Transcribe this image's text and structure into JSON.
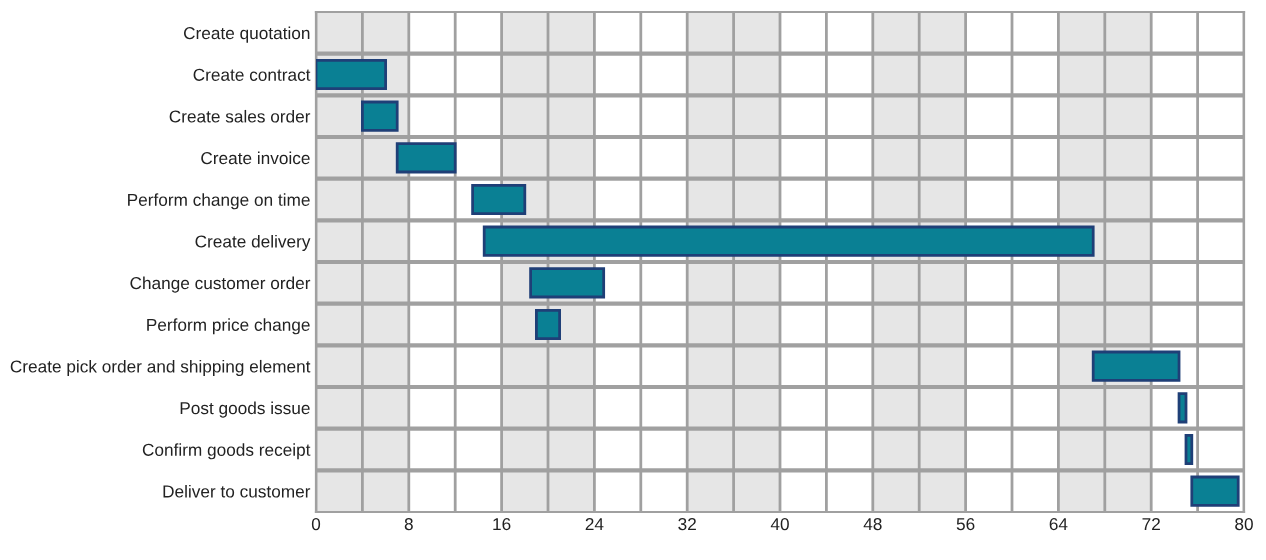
{
  "chart_data": {
    "type": "bar",
    "orientation": "horizontal",
    "categories": [
      "Create quotation",
      "Create contract",
      "Create sales order",
      "Create invoice",
      "Perform change on time",
      "Create delivery",
      "Change customer order",
      "Perform price change",
      "Create pick order and shipping element",
      "Post goods issue",
      "Confirm goods receipt",
      "Deliver to customer"
    ],
    "base": [
      null,
      0,
      4,
      7,
      13.5,
      14.5,
      18.5,
      19,
      67,
      74.4,
      75,
      75.5
    ],
    "values": [
      null,
      6,
      3,
      5,
      4.5,
      52.5,
      6.3,
      2,
      7.4,
      0.6,
      0.5,
      4
    ],
    "color": "#0a8094",
    "xlim": [
      0,
      80
    ],
    "xticks": [
      0,
      {
        "value": 4,
        "label": null
      },
      8,
      {
        "value": 12,
        "label": null
      },
      16,
      {
        "value": 20,
        "label": null
      },
      24,
      {
        "value": 28,
        "label": null
      },
      32,
      {
        "value": 36,
        "label": null
      },
      40,
      {
        "value": 44,
        "label": null
      },
      48,
      {
        "value": 52,
        "label": null
      },
      56,
      {
        "value": 60,
        "label": null
      },
      64,
      {
        "value": 68,
        "label": null
      },
      72,
      {
        "value": 76,
        "label": null
      },
      80
    ],
    "bands": [
      {
        "axis": "x",
        "from": 0,
        "to": 8,
        "label": null,
        "color": "#e6e6e6"
      },
      {
        "axis": "x",
        "from": 16,
        "to": 24,
        "label": null,
        "color": "#e6e6e6"
      },
      {
        "axis": "x",
        "from": 32,
        "to": 40,
        "label": null,
        "color": "#e6e6e6"
      },
      {
        "axis": "x",
        "from": 48,
        "to": 56,
        "label": null,
        "color": "#e6e6e6"
      },
      {
        "axis": "x",
        "from": 64,
        "to": 72,
        "label": null,
        "color": "#e6e6e6"
      }
    ],
    "grid": true,
    "legend": false
  }
}
